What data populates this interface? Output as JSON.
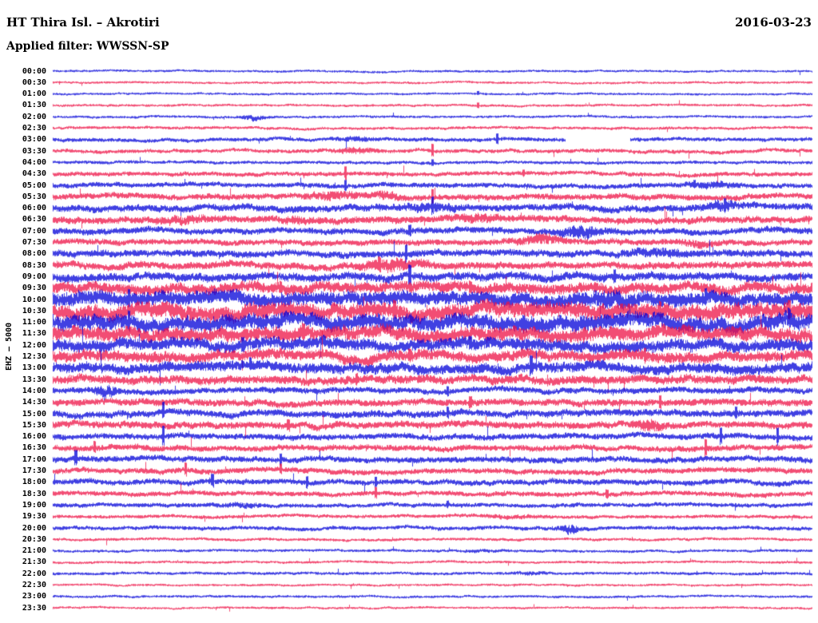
{
  "header": {
    "station_title": "HT Thira Isl. – Akrotiri",
    "date": "2016-03-23",
    "filter_line": "Applied filter: WWSSN-SP"
  },
  "side_label": "EHZ – 5000",
  "chart_data": {
    "type": "line",
    "variant": "helicorder-drumplot",
    "title": "HT Thira Isl. – Akrotiri",
    "date": "2016-03-23",
    "filter": "WWSSN-SP",
    "channel": "EHZ",
    "scale": "5000",
    "minutes_per_row": 30,
    "grid": false,
    "legend": false,
    "colors": {
      "hour": "#0000d8",
      "half": "#ed1245"
    },
    "rows": [
      {
        "time": "00:00",
        "color": "hour",
        "amp": 1.2
      },
      {
        "time": "00:30",
        "color": "half",
        "amp": 1.2
      },
      {
        "time": "01:00",
        "color": "hour",
        "amp": 1.2,
        "spikes": [
          [
            0.56,
            3
          ]
        ]
      },
      {
        "time": "01:30",
        "color": "half",
        "amp": 1.3,
        "spikes": [
          [
            0.56,
            4
          ]
        ]
      },
      {
        "time": "02:00",
        "color": "hour",
        "amp": 1.3,
        "bursts": [
          [
            0.265,
            0.015,
            2.2
          ]
        ]
      },
      {
        "time": "02:30",
        "color": "half",
        "amp": 1.5
      },
      {
        "time": "03:00",
        "color": "hour",
        "amp": 2.0,
        "gaps": [
          [
            0.675,
            0.76
          ]
        ],
        "spikes": [
          [
            0.585,
            7
          ]
        ],
        "bursts": [
          [
            0.4,
            0.02,
            1.2
          ]
        ]
      },
      {
        "time": "03:30",
        "color": "half",
        "amp": 2.0,
        "bursts": [
          [
            0.4,
            0.025,
            2.0
          ]
        ],
        "spikes": [
          [
            0.5,
            9
          ]
        ]
      },
      {
        "time": "04:00",
        "color": "hour",
        "amp": 1.7,
        "spikes": [
          [
            0.5,
            5
          ]
        ]
      },
      {
        "time": "04:30",
        "color": "half",
        "amp": 2.2,
        "spikes": [
          [
            0.385,
            9
          ],
          [
            0.62,
            5
          ]
        ]
      },
      {
        "time": "05:00",
        "color": "hour",
        "amp": 2.5,
        "spikes": [
          [
            0.385,
            8
          ],
          [
            0.845,
            6
          ]
        ],
        "bursts": [
          [
            0.87,
            0.03,
            1.5
          ]
        ]
      },
      {
        "time": "05:30",
        "color": "half",
        "amp": 3.0,
        "bursts": [
          [
            0.37,
            0.03,
            2.5
          ],
          [
            0.44,
            0.02,
            2.0
          ]
        ],
        "spikes": [
          [
            0.5,
            10
          ]
        ]
      },
      {
        "time": "06:00",
        "color": "hour",
        "amp": 3.5,
        "bursts": [
          [
            0.5,
            0.03,
            2.0
          ],
          [
            0.88,
            0.02,
            2.5
          ]
        ],
        "spikes": [
          [
            0.5,
            12
          ],
          [
            0.885,
            10
          ]
        ]
      },
      {
        "time": "06:30",
        "color": "half",
        "amp": 3.5,
        "bursts": [
          [
            0.17,
            0.03,
            2.0
          ],
          [
            0.32,
            0.02,
            1.5
          ],
          [
            0.56,
            0.03,
            2.0
          ]
        ]
      },
      {
        "time": "07:00",
        "color": "hour",
        "amp": 3.2,
        "bursts": [
          [
            0.695,
            0.025,
            4.0
          ]
        ],
        "spikes": [
          [
            0.47,
            8
          ]
        ]
      },
      {
        "time": "07:30",
        "color": "half",
        "amp": 3.0,
        "bursts": [
          [
            0.645,
            0.03,
            3.0
          ],
          [
            0.85,
            0.02,
            1.5
          ]
        ]
      },
      {
        "time": "08:00",
        "color": "hour",
        "amp": 3.5,
        "bursts": [
          [
            0.8,
            0.04,
            2.0
          ]
        ],
        "spikes": [
          [
            0.465,
            12
          ]
        ]
      },
      {
        "time": "08:30",
        "color": "half",
        "amp": 3.6,
        "bursts": [
          [
            0.45,
            0.04,
            3.5
          ]
        ],
        "spikes": [
          [
            0.43,
            10
          ]
        ]
      },
      {
        "time": "09:00",
        "color": "hour",
        "amp": 4.2,
        "spikes": [
          [
            0.47,
            13
          ],
          [
            0.74,
            9
          ]
        ]
      },
      {
        "time": "09:30",
        "color": "half",
        "amp": 5.5,
        "spikes": [
          [
            0.3,
            9
          ],
          [
            0.55,
            8
          ]
        ]
      },
      {
        "time": "10:00",
        "color": "hour",
        "amp": 7.0,
        "bursts": [
          [
            0.74,
            0.03,
            3.0
          ]
        ],
        "spikes": [
          [
            0.1,
            12
          ],
          [
            0.86,
            12
          ]
        ]
      },
      {
        "time": "10:30",
        "color": "half",
        "amp": 8.0,
        "spikes": [
          [
            0.45,
            13
          ],
          [
            0.8,
            12
          ],
          [
            0.97,
            14
          ]
        ]
      },
      {
        "time": "11:00",
        "color": "hour",
        "amp": 8.0,
        "spikes": [
          [
            0.1,
            14
          ],
          [
            0.62,
            12
          ],
          [
            0.97,
            13
          ]
        ]
      },
      {
        "time": "11:30",
        "color": "half",
        "amp": 7.0,
        "spikes": [
          [
            0.33,
            11
          ],
          [
            0.7,
            10
          ]
        ]
      },
      {
        "time": "12:00",
        "color": "hour",
        "amp": 6.0,
        "spikes": [
          [
            0.25,
            10
          ],
          [
            0.55,
            9
          ]
        ]
      },
      {
        "time": "12:30",
        "color": "half",
        "amp": 5.5,
        "spikes": [
          [
            0.47,
            9
          ],
          [
            0.78,
            10
          ]
        ]
      },
      {
        "time": "13:00",
        "color": "hour",
        "amp": 5.2,
        "spikes": [
          [
            0.63,
            14
          ],
          [
            0.26,
            9
          ]
        ]
      },
      {
        "time": "13:30",
        "color": "half",
        "amp": 4.3,
        "spikes": [
          [
            0.4,
            8
          ]
        ]
      },
      {
        "time": "14:00",
        "color": "hour",
        "amp": 3.0,
        "bursts": [
          [
            0.07,
            0.012,
            4.5
          ]
        ],
        "spikes": [
          [
            0.52,
            7
          ]
        ]
      },
      {
        "time": "14:30",
        "color": "half",
        "amp": 3.5,
        "spikes": [
          [
            0.55,
            8
          ],
          [
            0.8,
            9
          ]
        ]
      },
      {
        "time": "15:00",
        "color": "hour",
        "amp": 3.5,
        "spikes": [
          [
            0.145,
            12
          ],
          [
            0.52,
            8
          ],
          [
            0.9,
            9
          ]
        ]
      },
      {
        "time": "15:30",
        "color": "half",
        "amp": 3.5,
        "bursts": [
          [
            0.785,
            0.015,
            3.5
          ]
        ],
        "spikes": [
          [
            0.31,
            8
          ]
        ]
      },
      {
        "time": "16:00",
        "color": "hour",
        "amp": 3.0,
        "spikes": [
          [
            0.145,
            13
          ],
          [
            0.88,
            11
          ],
          [
            0.955,
            12
          ]
        ]
      },
      {
        "time": "16:30",
        "color": "half",
        "amp": 3.0,
        "spikes": [
          [
            0.055,
            8
          ],
          [
            0.86,
            12
          ]
        ]
      },
      {
        "time": "17:00",
        "color": "hour",
        "amp": 3.0,
        "spikes": [
          [
            0.03,
            10
          ],
          [
            0.3,
            8
          ]
        ]
      },
      {
        "time": "17:30",
        "color": "half",
        "amp": 2.8,
        "spikes": [
          [
            0.175,
            9
          ],
          [
            0.3,
            7
          ]
        ]
      },
      {
        "time": "18:00",
        "color": "hour",
        "amp": 2.8,
        "spikes": [
          [
            0.21,
            9
          ],
          [
            0.335,
            8
          ],
          [
            0.425,
            7
          ]
        ]
      },
      {
        "time": "18:30",
        "color": "half",
        "amp": 2.5,
        "spikes": [
          [
            0.425,
            8
          ],
          [
            0.73,
            6
          ]
        ]
      },
      {
        "time": "19:00",
        "color": "hour",
        "amp": 2.2,
        "bursts": [
          [
            0.25,
            0.02,
            1.2
          ]
        ],
        "spikes": [
          [
            0.52,
            5
          ]
        ]
      },
      {
        "time": "19:30",
        "color": "half",
        "amp": 1.8,
        "bursts": [
          [
            0.6,
            0.04,
            0.8
          ]
        ]
      },
      {
        "time": "20:00",
        "color": "hour",
        "amp": 2.0,
        "bursts": [
          [
            0.68,
            0.012,
            3.5
          ]
        ]
      },
      {
        "time": "20:30",
        "color": "half",
        "amp": 1.5
      },
      {
        "time": "21:00",
        "color": "hour",
        "amp": 1.4,
        "bursts": [
          [
            0.56,
            0.03,
            0.6
          ]
        ]
      },
      {
        "time": "21:30",
        "color": "half",
        "amp": 1.3
      },
      {
        "time": "22:00",
        "color": "hour",
        "amp": 1.5,
        "bursts": [
          [
            0.63,
            0.02,
            0.8
          ]
        ]
      },
      {
        "time": "22:30",
        "color": "half",
        "amp": 1.2
      },
      {
        "time": "23:00",
        "color": "hour",
        "amp": 1.3
      },
      {
        "time": "23:30",
        "color": "half",
        "amp": 1.2
      }
    ]
  }
}
